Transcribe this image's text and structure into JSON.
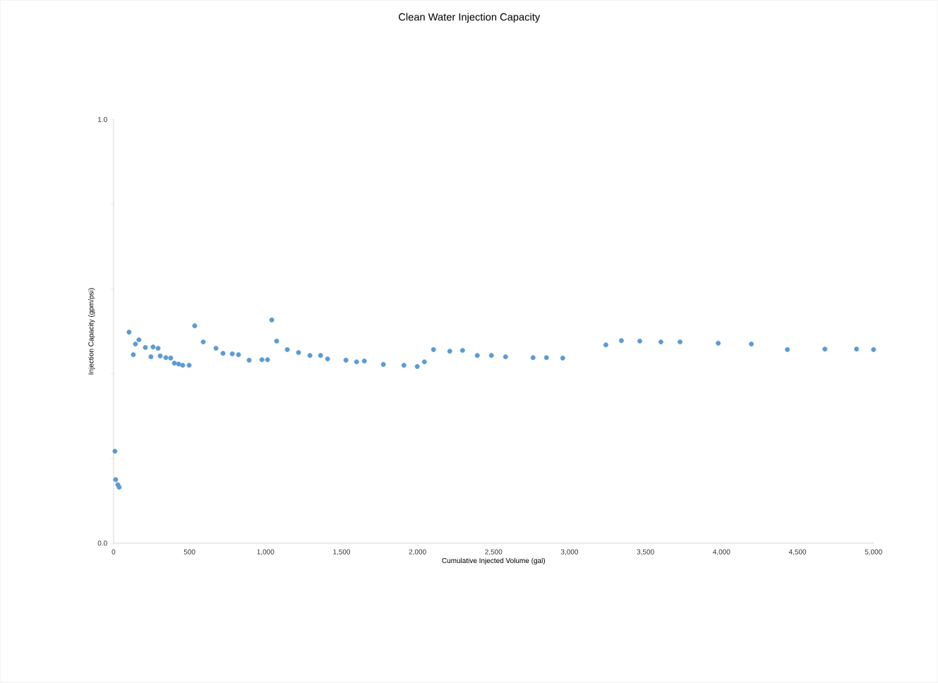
{
  "chart_data": {
    "type": "scatter",
    "title": "Clean Water Injection Capacity",
    "xlabel": "Cumulative Injected Volume (gal)",
    "ylabel": "Injection Capacity (gpm/psi)",
    "xlim": [
      0,
      5000
    ],
    "ylim": [
      0,
      1.0
    ],
    "xticks": [
      0,
      500,
      {
        "value": 1000,
        "label": "1,000"
      },
      {
        "value": 1500,
        "label": "1,500"
      },
      {
        "value": 2000,
        "label": "2,000"
      },
      {
        "value": 2500,
        "label": "2,500"
      },
      {
        "value": 3000,
        "label": "3,000"
      },
      {
        "value": 3500,
        "label": "3,500"
      },
      {
        "value": 4000,
        "label": "4,000"
      },
      {
        "value": 4500,
        "label": "4,500"
      },
      {
        "value": 5000,
        "label": "5,000"
      }
    ],
    "yticks": [
      {
        "value": 0,
        "label": "0.0"
      },
      {
        "value": 0.2,
        "label": null
      },
      {
        "value": 0.4,
        "label": null
      },
      {
        "value": 0.6,
        "label": null
      },
      {
        "value": 0.8,
        "label": null
      },
      {
        "value": 1.0,
        "label": "1.0"
      }
    ],
    "grid": false,
    "marker": "circle",
    "series": [
      {
        "color": "#5b9bd5",
        "x": [
          9,
          14,
          28,
          37,
          102,
          130,
          144,
          167,
          209,
          246,
          260,
          293,
          307,
          344,
          376,
          400,
          428,
          455,
          497,
          534,
          590,
          674,
          720,
          781,
          822,
          892,
          976,
          1013,
          1041,
          1073,
          1143,
          1217,
          1292,
          1362,
          1408,
          1529,
          1599,
          1650,
          1775,
          1910,
          1998,
          2045,
          2105,
          2212,
          2296,
          2393,
          2486,
          2579,
          2760,
          2848,
          2955,
          3239,
          3341,
          3462,
          3601,
          3727,
          3978,
          4196,
          4433,
          4680,
          4888,
          5000
        ],
        "values": [
          0.217,
          0.15,
          0.138,
          0.132,
          0.498,
          0.445,
          0.47,
          0.48,
          0.462,
          0.44,
          0.463,
          0.46,
          0.442,
          0.438,
          0.437,
          0.425,
          0.423,
          0.42,
          0.42,
          0.513,
          0.475,
          0.46,
          0.448,
          0.447,
          0.445,
          0.432,
          0.433,
          0.433,
          0.527,
          0.477,
          0.457,
          0.45,
          0.443,
          0.443,
          0.435,
          0.432,
          0.428,
          0.43,
          0.422,
          0.42,
          0.417,
          0.428,
          0.457,
          0.453,
          0.455,
          0.443,
          0.443,
          0.44,
          0.438,
          0.438,
          0.437,
          0.468,
          0.478,
          0.477,
          0.475,
          0.475,
          0.472,
          0.47,
          0.457,
          0.458,
          0.458,
          0.457
        ]
      }
    ]
  }
}
